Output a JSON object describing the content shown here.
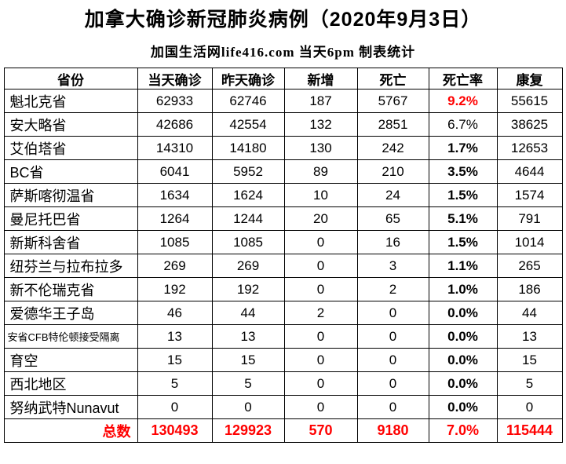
{
  "header": {
    "title": "加拿大确诊新冠肺炎病例（2020年9月3日）",
    "subtitle": "加国生活网life416.com 当天6pm 制表统计"
  },
  "colors": {
    "highlight_red": "#ff0000",
    "text": "#000000",
    "border": "#000000",
    "background": "#ffffff"
  },
  "table": {
    "columns": [
      "省份",
      "当天确诊",
      "昨天确诊",
      "新增",
      "死亡",
      "死亡率",
      "康复"
    ],
    "rows": [
      {
        "cells": [
          "魁北克省",
          "62933",
          "62746",
          "187",
          "5767",
          "9.2%",
          "55615"
        ],
        "rate_style": "red"
      },
      {
        "cells": [
          "安大略省",
          "42686",
          "42554",
          "132",
          "2851",
          "6.7%",
          "38625"
        ],
        "rate_style": "regular"
      },
      {
        "cells": [
          "艾伯塔省",
          "14310",
          "14180",
          "130",
          "242",
          "1.7%",
          "12653"
        ],
        "rate_style": "bold"
      },
      {
        "cells": [
          "BC省",
          "6041",
          "5952",
          "89",
          "210",
          "3.5%",
          "4644"
        ],
        "rate_style": "bold"
      },
      {
        "cells": [
          "萨斯喀彻温省",
          "1634",
          "1624",
          "10",
          "24",
          "1.5%",
          "1574"
        ],
        "rate_style": "bold"
      },
      {
        "cells": [
          "曼尼托巴省",
          "1264",
          "1244",
          "20",
          "65",
          "5.1%",
          "791"
        ],
        "rate_style": "bold"
      },
      {
        "cells": [
          "新斯科舍省",
          "1085",
          "1085",
          "0",
          "16",
          "1.5%",
          "1014"
        ],
        "rate_style": "bold"
      },
      {
        "cells": [
          "纽芬兰与拉布拉多",
          "269",
          "269",
          "0",
          "3",
          "1.1%",
          "265"
        ],
        "rate_style": "bold"
      },
      {
        "cells": [
          "新不伦瑞克省",
          "192",
          "192",
          "0",
          "2",
          "1.0%",
          "186"
        ],
        "rate_style": "bold"
      },
      {
        "cells": [
          "爱德华王子岛",
          "46",
          "44",
          "2",
          "0",
          "0.0%",
          "44"
        ],
        "rate_style": "bold"
      },
      {
        "cells": [
          "安省CFB特伦顿接受隔离",
          "13",
          "13",
          "0",
          "0",
          "0.0%",
          "13"
        ],
        "rate_style": "bold",
        "province_small": true
      },
      {
        "cells": [
          "育空",
          "15",
          "15",
          "0",
          "0",
          "0.0%",
          "15"
        ],
        "rate_style": "bold"
      },
      {
        "cells": [
          "西北地区",
          "5",
          "5",
          "0",
          "0",
          "0.0%",
          "5"
        ],
        "rate_style": "bold"
      },
      {
        "cells": [
          "努纳武特Nunavut",
          "0",
          "0",
          "0",
          "0",
          "0.0%",
          "0"
        ],
        "rate_style": "bold"
      }
    ],
    "total": {
      "label": "总数",
      "values": [
        "130493",
        "129923",
        "570",
        "9180",
        "7.0%",
        "115444"
      ]
    }
  }
}
